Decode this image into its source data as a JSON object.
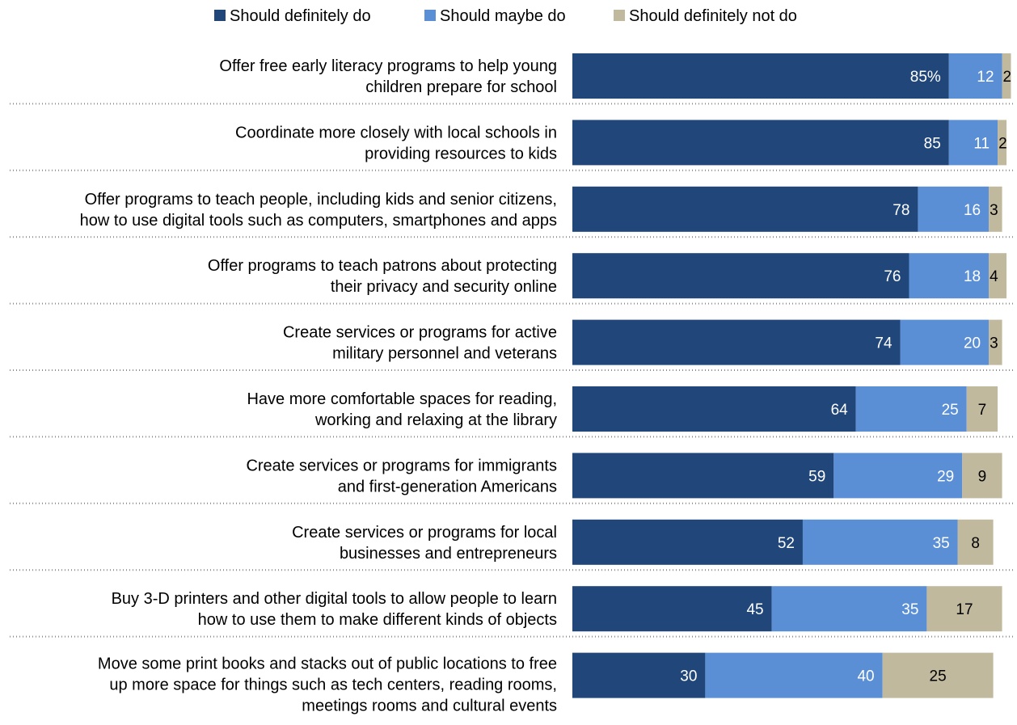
{
  "chart_data": {
    "type": "bar",
    "orientation": "horizontal",
    "stacked": true,
    "title": "",
    "xlabel": "",
    "ylabel": "",
    "xlim": [
      0,
      100
    ],
    "legend_position": "top",
    "grid": false,
    "categories": [
      [
        "Offer free early literacy programs to help young",
        "children prepare for school"
      ],
      [
        "Coordinate more closely with local schools in",
        "providing resources to kids"
      ],
      [
        "Offer programs to teach people, including kids and senior citizens,",
        "how to use digital tools such as computers, smartphones and apps"
      ],
      [
        "Offer programs to teach patrons about protecting",
        "their privacy and security online"
      ],
      [
        "Create services or programs for active",
        "military personnel and veterans"
      ],
      [
        "Have more comfortable spaces for reading,",
        "working and relaxing at the library"
      ],
      [
        "Create services or programs for immigrants",
        "and first-generation Americans"
      ],
      [
        "Create services or programs for local",
        "businesses and entrepreneurs"
      ],
      [
        "Buy 3-D printers and other digital tools to allow people to learn",
        "how to use them to make different kinds of objects"
      ],
      [
        "Move some print books and stacks out of public locations to free",
        "up more space for things such as tech centers, reading rooms,",
        "meetings rooms and cultural events"
      ]
    ],
    "series": [
      {
        "name": "Should definitely do",
        "color": "#21477a",
        "label_color": "#ffffff",
        "values": [
          85,
          85,
          78,
          76,
          74,
          64,
          59,
          52,
          45,
          30
        ],
        "labels": [
          "85%",
          "85",
          "78",
          "76",
          "74",
          "64",
          "59",
          "52",
          "45",
          "30"
        ]
      },
      {
        "name": "Should maybe do",
        "color": "#5b8fd5",
        "label_color": "#ffffff",
        "values": [
          12,
          11,
          16,
          18,
          20,
          25,
          29,
          35,
          35,
          40
        ],
        "labels": [
          "12",
          "11",
          "16",
          "18",
          "20",
          "25",
          "29",
          "35",
          "35",
          "40"
        ]
      },
      {
        "name": "Should definitely not do",
        "color": "#c1b99d",
        "label_color": "#000000",
        "values": [
          2,
          2,
          3,
          4,
          3,
          7,
          9,
          8,
          17,
          25
        ],
        "labels": [
          "2",
          "2",
          "3",
          "4",
          "3",
          "7",
          "9",
          "8",
          "17",
          "25"
        ]
      }
    ]
  }
}
